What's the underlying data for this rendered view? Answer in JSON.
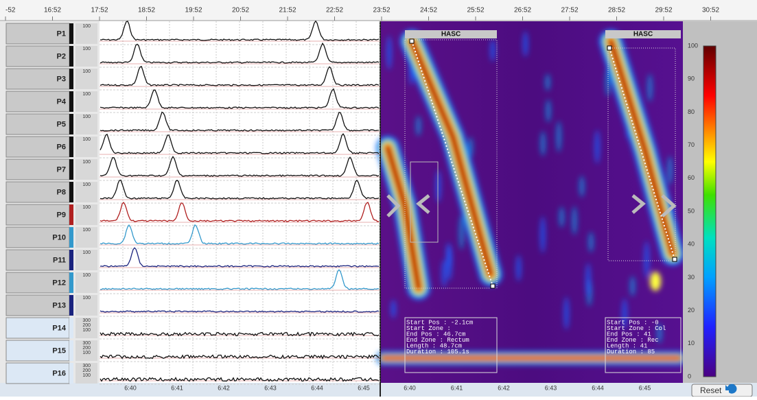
{
  "top_ruler": {
    "labels": [
      "-52",
      "16:52",
      "17:52",
      "18:52",
      "19:52",
      "20:52",
      "21:52",
      "22:52",
      "23:52",
      "24:52",
      "25:52",
      "26:52",
      "27:52",
      "28:52",
      "29:52",
      "30:52"
    ]
  },
  "channels": [
    {
      "label": "P1",
      "scale": [
        "100"
      ]
    },
    {
      "label": "P2",
      "scale": [
        "100"
      ]
    },
    {
      "label": "P3",
      "scale": [
        "100"
      ]
    },
    {
      "label": "P4",
      "scale": [
        "100"
      ]
    },
    {
      "label": "P5",
      "scale": [
        "100"
      ]
    },
    {
      "label": "P6",
      "scale": [
        "100"
      ]
    },
    {
      "label": "P7",
      "scale": [
        "100"
      ]
    },
    {
      "label": "P8",
      "scale": [
        "100"
      ]
    },
    {
      "label": "P9",
      "scale": [
        "100"
      ]
    },
    {
      "label": "P10",
      "scale": [
        "100"
      ]
    },
    {
      "label": "P11",
      "scale": [
        "100"
      ]
    },
    {
      "label": "P12",
      "scale": [
        "100"
      ]
    },
    {
      "label": "P13",
      "scale": [
        "100"
      ]
    },
    {
      "label": "P14",
      "scale": [
        "300",
        "200",
        "100"
      ]
    },
    {
      "label": "P15",
      "scale": [
        "300",
        "200",
        "100"
      ]
    },
    {
      "label": "P16",
      "scale": [
        "300",
        "200",
        "100"
      ]
    }
  ],
  "time_axis": {
    "left": [
      "6:40",
      "6:41",
      "6:42",
      "6:43",
      "6:44",
      "6:45"
    ],
    "right": [
      "6:40",
      "6:41",
      "6:42",
      "6:43",
      "6:44",
      "6:45"
    ]
  },
  "heatmap": {
    "events": [
      {
        "title": "HASC",
        "details": [
          "Start Pos  : -2.1cm",
          "Start Zone :",
          "End Pos    : 46.7cm",
          "End Zone   : Rectum",
          "Length     : 48.7cm",
          "Duration   : 105.1s"
        ]
      },
      {
        "title": "HASC",
        "details": [
          "Start Pos  : -0",
          "Start Zone : Col",
          "End Pos    : 41",
          "End Zone   : Rec",
          "Length     : 41",
          "Duration   : 85"
        ]
      }
    ]
  },
  "color_scale": {
    "ticks": [
      100,
      90,
      80,
      70,
      60,
      50,
      40,
      30,
      20,
      10,
      0
    ]
  },
  "reset_button": "Reset"
}
